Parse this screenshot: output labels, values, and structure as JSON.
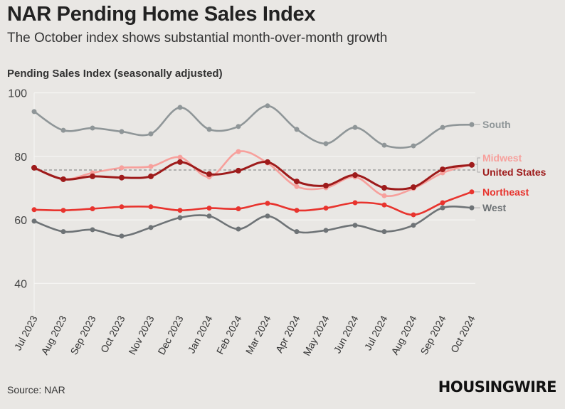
{
  "title": "NAR Pending Home Sales Index",
  "subtitle": "The October index shows substantial month-over-month growth",
  "source": "Source: NAR",
  "logo": "HOUSINGWIRE",
  "chart_data": {
    "type": "line",
    "title": "NAR Pending Home Sales Index",
    "ylabel": "Pending Sales Index (seasonally adjusted)",
    "xlabel": "",
    "ylim": [
      30,
      100
    ],
    "yticks": [
      40,
      60,
      80,
      100
    ],
    "grid": true,
    "legend": "right (direct labels)",
    "reference_line": 75.7,
    "categories": [
      "Jul 2023",
      "Aug 2023",
      "Sep 2023",
      "Oct 2023",
      "Nov 2023",
      "Dec 2023",
      "Jan 2024",
      "Feb 2024",
      "Mar 2024",
      "Apr 2024",
      "May 2024",
      "Jun 2024",
      "Jul 2024",
      "Aug 2024",
      "Sep 2024",
      "Oct 2024"
    ],
    "series": [
      {
        "name": "South",
        "color": "#8f9698",
        "values": [
          94.1,
          88.2,
          88.9,
          87.8,
          87.1,
          95.4,
          88.5,
          89.4,
          95.9,
          88.5,
          84.0,
          89.1,
          83.5,
          83.3,
          89.1,
          90.0
        ]
      },
      {
        "name": "Midwest",
        "color": "#f7a09c",
        "values": [
          76.4,
          72.8,
          74.8,
          76.4,
          76.8,
          79.7,
          73.5,
          81.5,
          77.9,
          70.5,
          70.1,
          73.5,
          67.6,
          69.9,
          74.8,
          77.5
        ]
      },
      {
        "name": "United States",
        "color": "#9e1b1b",
        "values": [
          76.4,
          72.8,
          73.7,
          73.3,
          73.7,
          78.2,
          74.4,
          75.5,
          78.2,
          72.1,
          70.8,
          74.1,
          70.1,
          70.3,
          75.9,
          77.3
        ]
      },
      {
        "name": "Northeast",
        "color": "#e8342e",
        "values": [
          63.2,
          63.0,
          63.5,
          64.1,
          64.1,
          63.0,
          63.7,
          63.5,
          65.2,
          63.0,
          63.7,
          65.4,
          64.7,
          61.6,
          65.4,
          68.8
        ]
      },
      {
        "name": "West",
        "color": "#6e7376",
        "values": [
          59.6,
          56.3,
          56.9,
          54.9,
          57.6,
          60.7,
          61.2,
          57.1,
          61.2,
          56.3,
          56.7,
          58.3,
          56.3,
          58.3,
          63.8,
          63.8
        ]
      }
    ]
  }
}
